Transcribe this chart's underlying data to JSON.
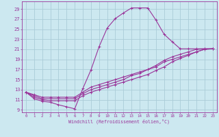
{
  "xlabel": "Windchill (Refroidissement éolien,°C)",
  "bg_color": "#cce8f0",
  "grid_color": "#aaccd8",
  "line_color": "#993399",
  "spine_color": "#993399",
  "xlim": [
    -0.5,
    23.5
  ],
  "ylim": [
    8.5,
    30.5
  ],
  "yticks": [
    9,
    11,
    13,
    15,
    17,
    19,
    21,
    23,
    25,
    27,
    29
  ],
  "xticks": [
    0,
    1,
    2,
    3,
    4,
    5,
    6,
    7,
    8,
    9,
    10,
    11,
    12,
    13,
    14,
    15,
    16,
    17,
    18,
    19,
    20,
    21,
    22,
    23
  ],
  "series1": [
    [
      0,
      12.5
    ],
    [
      1,
      11.2
    ],
    [
      2,
      10.7
    ],
    [
      3,
      10.5
    ],
    [
      4,
      10.0
    ],
    [
      5,
      9.6
    ],
    [
      6,
      9.2
    ],
    [
      7,
      13.2
    ],
    [
      8,
      16.9
    ],
    [
      9,
      21.5
    ],
    [
      10,
      25.2
    ],
    [
      11,
      27.1
    ],
    [
      12,
      28.2
    ],
    [
      13,
      29.2
    ],
    [
      14,
      29.2
    ],
    [
      15,
      29.2
    ],
    [
      16,
      26.8
    ],
    [
      17,
      24.0
    ],
    [
      18,
      22.5
    ],
    [
      19,
      21.1
    ],
    [
      20,
      21.1
    ],
    [
      21,
      21.1
    ],
    [
      22,
      21.1
    ],
    [
      23,
      21.1
    ]
  ],
  "series2": [
    [
      0,
      12.5
    ],
    [
      1,
      12.0
    ],
    [
      2,
      11.5
    ],
    [
      3,
      11.5
    ],
    [
      4,
      11.5
    ],
    [
      5,
      11.5
    ],
    [
      6,
      11.5
    ],
    [
      7,
      12.5
    ],
    [
      8,
      13.5
    ],
    [
      9,
      14.0
    ],
    [
      10,
      14.5
    ],
    [
      11,
      15.0
    ],
    [
      12,
      15.5
    ],
    [
      13,
      16.0
    ],
    [
      14,
      16.5
    ],
    [
      15,
      17.0
    ],
    [
      16,
      17.5
    ],
    [
      17,
      18.5
    ],
    [
      18,
      19.0
    ],
    [
      19,
      19.5
    ],
    [
      20,
      20.0
    ],
    [
      21,
      20.5
    ],
    [
      22,
      21.0
    ],
    [
      23,
      21.1
    ]
  ],
  "series3": [
    [
      0,
      12.5
    ],
    [
      1,
      11.5
    ],
    [
      2,
      11.0
    ],
    [
      3,
      10.8
    ],
    [
      4,
      10.8
    ],
    [
      5,
      10.8
    ],
    [
      6,
      10.8
    ],
    [
      7,
      11.8
    ],
    [
      8,
      12.5
    ],
    [
      9,
      13.0
    ],
    [
      10,
      13.5
    ],
    [
      11,
      14.0
    ],
    [
      12,
      14.5
    ],
    [
      13,
      15.0
    ],
    [
      14,
      15.5
    ],
    [
      15,
      16.0
    ],
    [
      16,
      16.8
    ],
    [
      17,
      17.5
    ],
    [
      18,
      18.5
    ],
    [
      19,
      19.2
    ],
    [
      20,
      19.8
    ],
    [
      21,
      20.5
    ],
    [
      22,
      21.0
    ],
    [
      23,
      21.1
    ]
  ],
  "series4": [
    [
      0,
      12.5
    ],
    [
      1,
      11.8
    ],
    [
      2,
      11.2
    ],
    [
      3,
      11.2
    ],
    [
      4,
      11.2
    ],
    [
      5,
      11.2
    ],
    [
      6,
      11.2
    ],
    [
      7,
      12.2
    ],
    [
      8,
      13.0
    ],
    [
      9,
      13.5
    ],
    [
      10,
      14.0
    ],
    [
      11,
      14.5
    ],
    [
      12,
      15.0
    ],
    [
      13,
      15.8
    ],
    [
      14,
      16.2
    ],
    [
      15,
      17.0
    ],
    [
      16,
      17.8
    ],
    [
      17,
      18.8
    ],
    [
      18,
      19.5
    ],
    [
      19,
      20.0
    ],
    [
      20,
      20.5
    ],
    [
      21,
      21.0
    ],
    [
      22,
      21.1
    ],
    [
      23,
      21.1
    ]
  ]
}
